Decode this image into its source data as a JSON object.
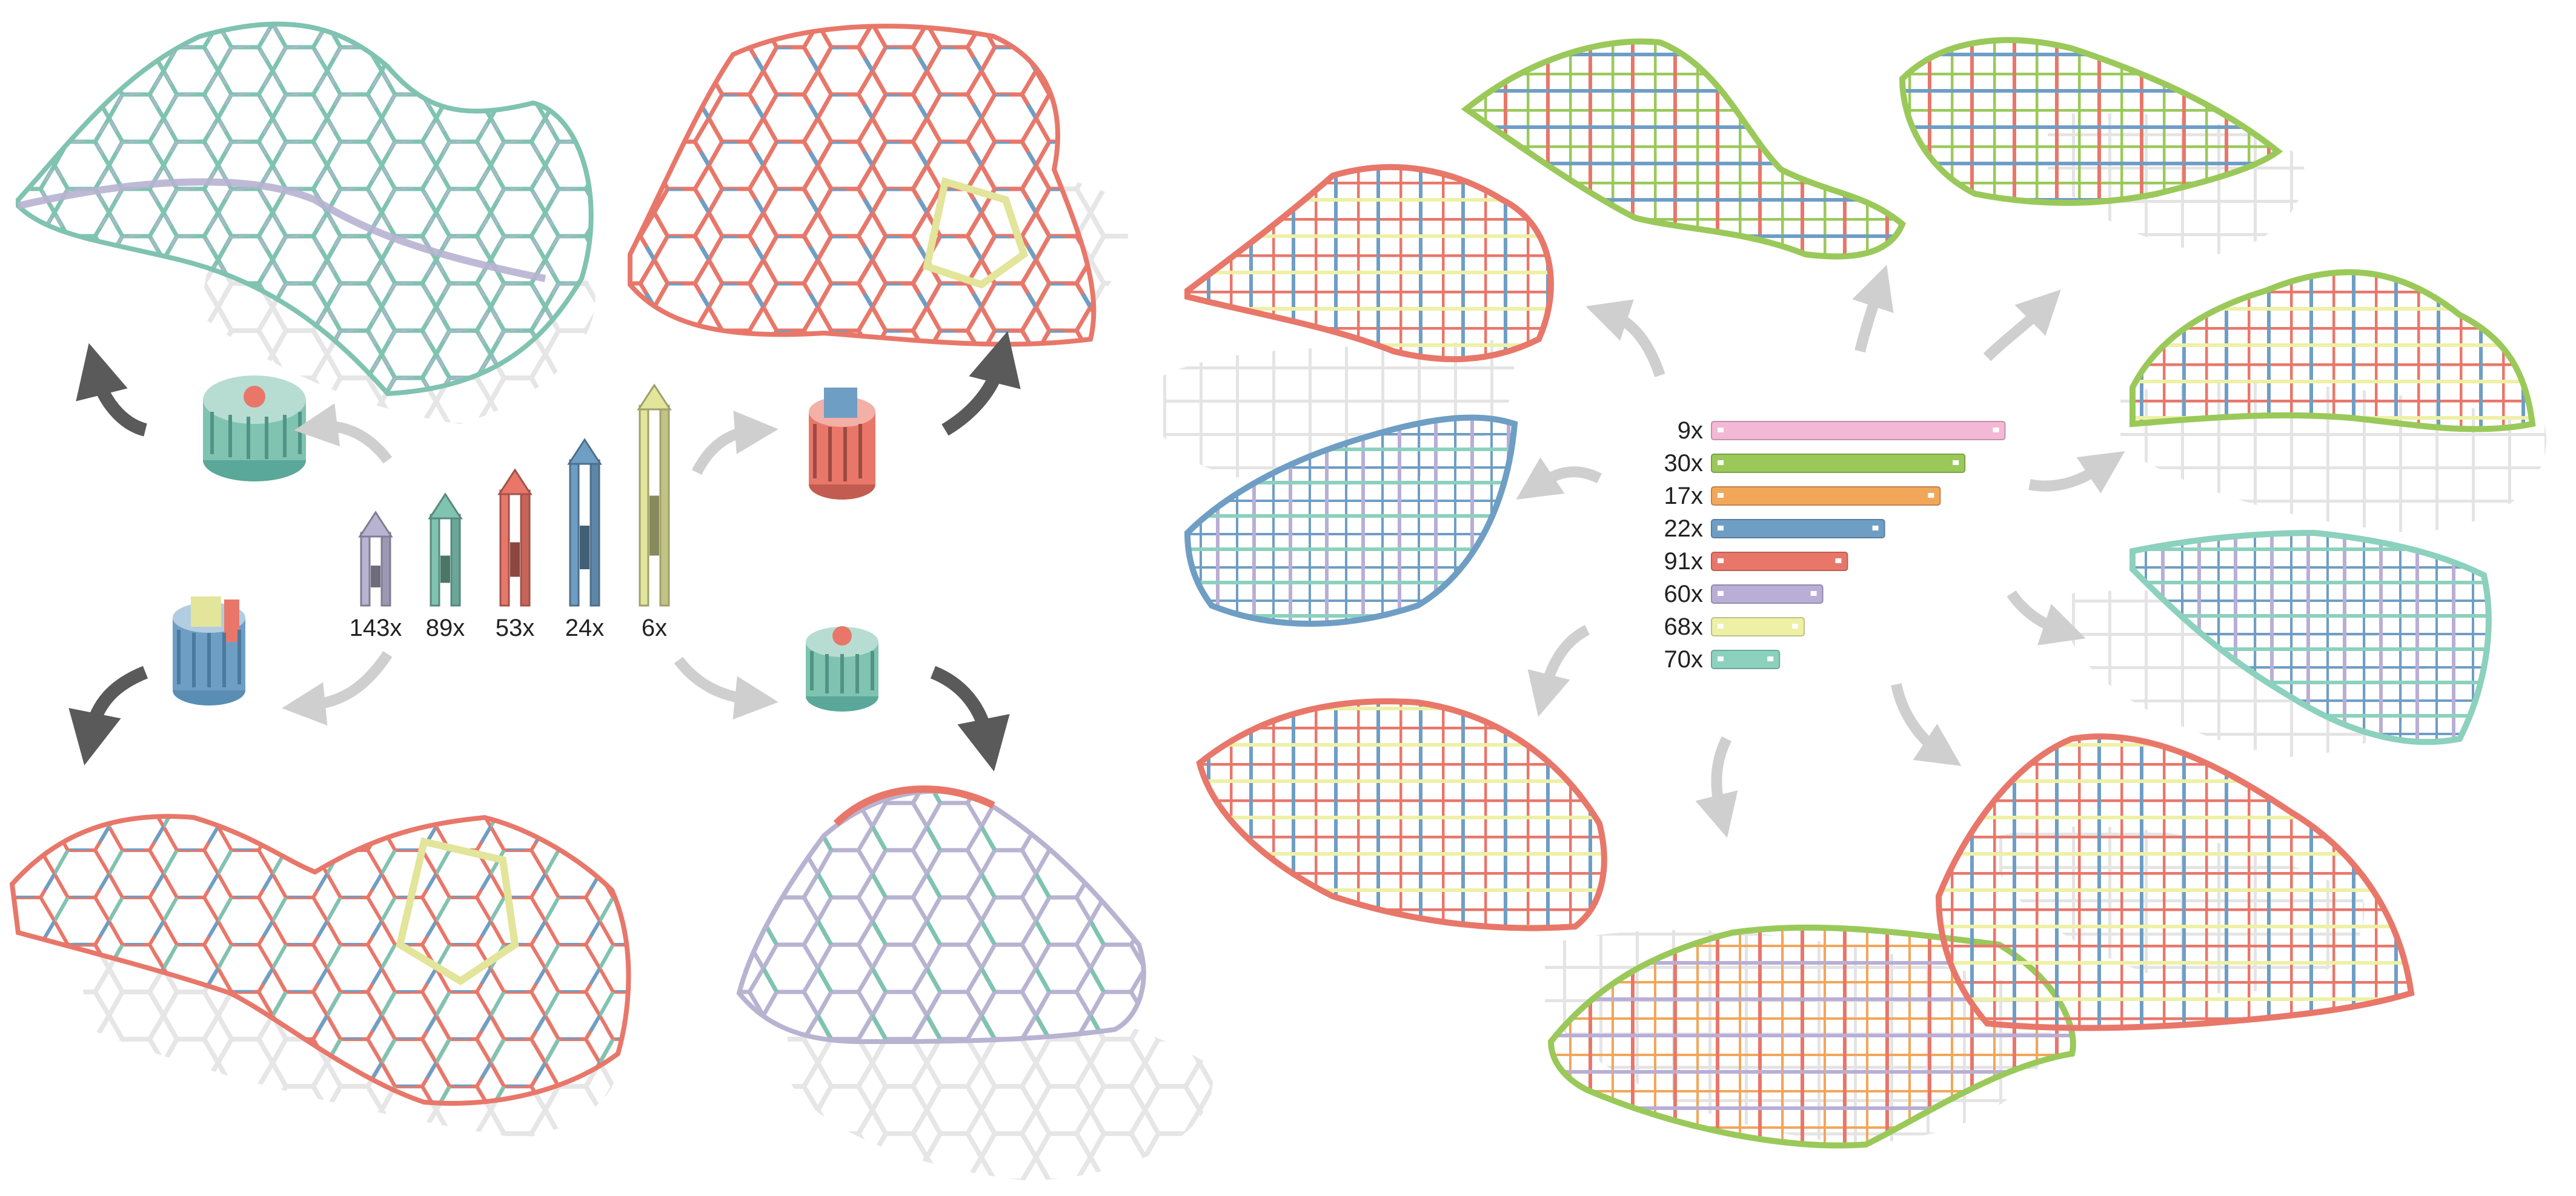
{
  "colors": {
    "purple": "#b7b3d1",
    "teal": "#7fc3b0",
    "red": "#e8776a",
    "blue": "#6f9ec4",
    "yellow": "#e2e59a",
    "pink": "#f2b8d6",
    "green": "#9ac95a",
    "orange": "#f2a65a",
    "lilac": "#b9aed6",
    "cream": "#eef0a6",
    "mint": "#8cd1bd",
    "arrow_dark": "#5a5a5a",
    "arrow_light": "#cfcfcf",
    "shadow": "#e2e2e2"
  },
  "left_panel": {
    "modules": [
      {
        "count": "143x",
        "color": "purple"
      },
      {
        "count": "89x",
        "color": "teal"
      },
      {
        "count": "53x",
        "color": "red"
      },
      {
        "count": "24x",
        "color": "blue"
      },
      {
        "count": "6x",
        "color": "yellow"
      }
    ]
  },
  "right_panel": {
    "strips": [
      {
        "count": "9x",
        "color": "pink",
        "length": 0.95
      },
      {
        "count": "30x",
        "color": "green",
        "length": 0.82
      },
      {
        "count": "17x",
        "color": "orange",
        "length": 0.74
      },
      {
        "count": "22x",
        "color": "blue",
        "length": 0.56
      },
      {
        "count": "91x",
        "color": "red",
        "length": 0.44
      },
      {
        "count": "60x",
        "color": "lilac",
        "length": 0.36
      },
      {
        "count": "68x",
        "color": "cream",
        "length": 0.3
      },
      {
        "count": "70x",
        "color": "mint",
        "length": 0.22
      }
    ]
  }
}
